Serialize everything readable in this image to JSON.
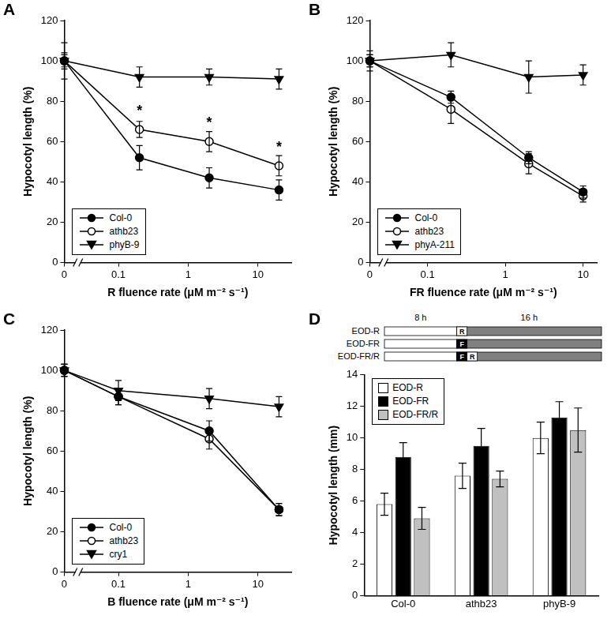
{
  "chart_data": [
    {
      "panel": "A",
      "type": "line",
      "x_label": "R fluence rate (μM m⁻² s⁻¹)",
      "y_label": "Hypocotyl length (%)",
      "log": "x",
      "grid": false,
      "legend": "lower left",
      "x": [
        0,
        0.2,
        2,
        20
      ],
      "xlim": [
        0,
        30
      ],
      "xticks": [
        0,
        0.1,
        1,
        10
      ],
      "ylim": [
        0,
        120
      ],
      "yticks": [
        0,
        20,
        40,
        60,
        80,
        100,
        120
      ],
      "series": [
        {
          "name": "Col-0",
          "color": "#000000",
          "marker": "circle",
          "values": [
            100,
            52,
            42,
            36
          ],
          "errors": [
            3,
            6,
            5,
            5
          ]
        },
        {
          "name": "athb23",
          "color": "#000000",
          "marker": "open_circle",
          "values": [
            100,
            66,
            60,
            48
          ],
          "errors": [
            4,
            4,
            5,
            5
          ]
        },
        {
          "name": "phyB-9",
          "color": "#000000",
          "marker": "triangle_down",
          "values": [
            100,
            92,
            92,
            91
          ],
          "errors": [
            9,
            5,
            4,
            5
          ]
        }
      ],
      "annotations": [
        {
          "text": "*",
          "x": 0.2,
          "y": 75
        },
        {
          "text": "*",
          "x": 2,
          "y": 69
        },
        {
          "text": "*",
          "x": 20,
          "y": 57
        }
      ]
    },
    {
      "panel": "B",
      "type": "line",
      "x_label": "FR fluence rate (μM m⁻² s⁻¹)",
      "y_label": "Hypocotyl length (%)",
      "log": "x",
      "grid": false,
      "legend": "lower left",
      "x": [
        0,
        0.2,
        2,
        10
      ],
      "xlim": [
        0,
        15
      ],
      "xticks": [
        0,
        0.1,
        1,
        10
      ],
      "ylim": [
        0,
        120
      ],
      "yticks": [
        0,
        20,
        40,
        60,
        80,
        100,
        120
      ],
      "series": [
        {
          "name": "Col-0",
          "color": "#000000",
          "marker": "circle",
          "values": [
            100,
            82,
            52,
            35
          ],
          "errors": [
            3,
            3,
            3,
            3
          ]
        },
        {
          "name": "athb23",
          "color": "#000000",
          "marker": "open_circle",
          "values": [
            100,
            76,
            49,
            33
          ],
          "errors": [
            3,
            7,
            5,
            3
          ]
        },
        {
          "name": "phyA-211",
          "color": "#000000",
          "marker": "triangle_down",
          "values": [
            100,
            103,
            92,
            93
          ],
          "errors": [
            5,
            6,
            8,
            5
          ]
        }
      ]
    },
    {
      "panel": "C",
      "type": "line",
      "x_label": "B fluence rate (μM m⁻² s⁻¹)",
      "y_label": "Hypocotyl length (%)",
      "log": "x",
      "grid": false,
      "legend": "lower left",
      "x": [
        0,
        0.1,
        2,
        20
      ],
      "xlim": [
        0,
        30
      ],
      "xticks": [
        0,
        0.1,
        1,
        10
      ],
      "ylim": [
        0,
        120
      ],
      "yticks": [
        0,
        20,
        40,
        60,
        80,
        100,
        120
      ],
      "series": [
        {
          "name": "Col-0",
          "color": "#000000",
          "marker": "circle",
          "values": [
            100,
            87,
            70,
            31
          ],
          "errors": [
            3,
            4,
            5,
            3
          ]
        },
        {
          "name": "athb23",
          "color": "#000000",
          "marker": "open_circle",
          "values": [
            100,
            87,
            66,
            31
          ],
          "errors": [
            3,
            4,
            5,
            3
          ]
        },
        {
          "name": "cry1",
          "color": "#000000",
          "marker": "triangle_down",
          "values": [
            100,
            90,
            86,
            82
          ],
          "errors": [
            3,
            5,
            5,
            5
          ]
        }
      ]
    },
    {
      "panel": "D",
      "type": "bar",
      "y_label": "Hypocotyl length (mm)",
      "grid": false,
      "legend": "upper left",
      "categories": [
        "Col-0",
        "athb23",
        "phyB-9"
      ],
      "ylim": [
        0,
        14
      ],
      "yticks": [
        0,
        2,
        4,
        6,
        8,
        10,
        12,
        14
      ],
      "series": [
        {
          "name": "EOD-R",
          "color": "#ffffff",
          "values": [
            5.8,
            7.6,
            10.0
          ],
          "errors": [
            0.7,
            0.8,
            1.0
          ]
        },
        {
          "name": "EOD-FR",
          "color": "#000000",
          "values": [
            8.8,
            9.5,
            11.3
          ],
          "errors": [
            0.9,
            1.1,
            1.0
          ]
        },
        {
          "name": "EOD-FR/R",
          "color": "#c0c0c0",
          "values": [
            4.9,
            7.4,
            10.5
          ],
          "errors": [
            0.7,
            0.5,
            1.4
          ]
        }
      ],
      "schematic": {
        "segments": [
          {
            "label": "8 h",
            "hours": 8,
            "color": "#ffffff"
          },
          {
            "label": "16 h",
            "hours": 16,
            "color": "#808080"
          }
        ],
        "rows": [
          {
            "label": "EOD-R",
            "pulses": [
              {
                "text": "R",
                "color": "#ffffff"
              }
            ]
          },
          {
            "label": "EOD-FR",
            "pulses": [
              {
                "text": "F",
                "color": "#000000"
              }
            ]
          },
          {
            "label": "EOD-FR/R",
            "pulses": [
              {
                "text": "F",
                "color": "#000000"
              },
              {
                "text": "R",
                "color": "#ffffff"
              }
            ]
          }
        ]
      }
    }
  ]
}
